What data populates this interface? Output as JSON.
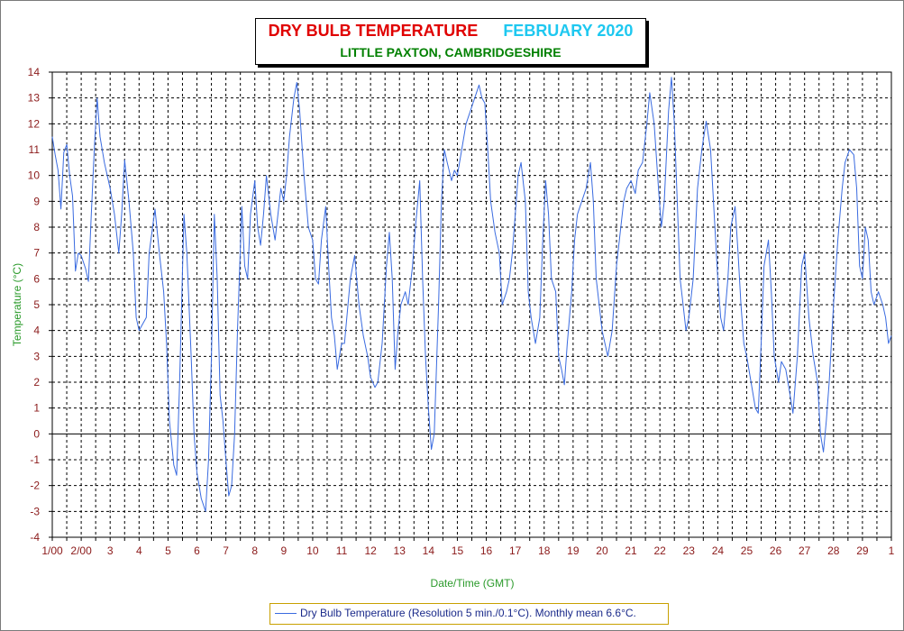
{
  "chart_data": {
    "type": "line",
    "title": "DRY BULB TEMPERATURE",
    "title_month": "FEBRUARY 2020",
    "subtitle": "LITTLE PAXTON, CAMBRIDGESHIRE",
    "xlabel": "Date/Time (GMT)",
    "ylabel": "Temperature (°C)",
    "ylim": [
      -4,
      14
    ],
    "xlim": [
      1,
      30
    ],
    "y_ticks": [
      "14",
      "13",
      "12",
      "11",
      "10",
      "9",
      "8",
      "7",
      "6",
      "5",
      "4",
      "3",
      "2",
      "1",
      "0",
      "-1",
      "-2",
      "-3",
      "-4"
    ],
    "x_ticks": [
      {
        "x": 1,
        "label": "1/00"
      },
      {
        "x": 2,
        "label": "2/00"
      },
      {
        "x": 3,
        "label": "3"
      },
      {
        "x": 4,
        "label": "4"
      },
      {
        "x": 5,
        "label": "5"
      },
      {
        "x": 6,
        "label": "6"
      },
      {
        "x": 7,
        "label": "7"
      },
      {
        "x": 8,
        "label": "8"
      },
      {
        "x": 9,
        "label": "9"
      },
      {
        "x": 10,
        "label": "10"
      },
      {
        "x": 11,
        "label": "11"
      },
      {
        "x": 12,
        "label": "12"
      },
      {
        "x": 13,
        "label": "13"
      },
      {
        "x": 14,
        "label": "14"
      },
      {
        "x": 15,
        "label": "15"
      },
      {
        "x": 16,
        "label": "16"
      },
      {
        "x": 17,
        "label": "17"
      },
      {
        "x": 18,
        "label": "18"
      },
      {
        "x": 19,
        "label": "19"
      },
      {
        "x": 20,
        "label": "20"
      },
      {
        "x": 21,
        "label": "21"
      },
      {
        "x": 22,
        "label": "22"
      },
      {
        "x": 23,
        "label": "23"
      },
      {
        "x": 24,
        "label": "24"
      },
      {
        "x": 25,
        "label": "25"
      },
      {
        "x": 26,
        "label": "26"
      },
      {
        "x": 27,
        "label": "27"
      },
      {
        "x": 28,
        "label": "28"
      },
      {
        "x": 29,
        "label": "29"
      },
      {
        "x": 30,
        "label": "1"
      }
    ],
    "grid": true,
    "legend": "bottom",
    "series": [
      {
        "name": "Dry Bulb Temperature (Resolution 5 min./0.1°C). Monthly mean 6.6°C.",
        "color": "#3a6be0",
        "points": [
          [
            1.0,
            11.5
          ],
          [
            1.1,
            10.8
          ],
          [
            1.2,
            10.2
          ],
          [
            1.3,
            8.7
          ],
          [
            1.4,
            10.9
          ],
          [
            1.5,
            11.2
          ],
          [
            1.6,
            10.0
          ],
          [
            1.7,
            9.2
          ],
          [
            1.8,
            6.3
          ],
          [
            1.9,
            7.0
          ],
          [
            2.0,
            6.9
          ],
          [
            2.15,
            6.4
          ],
          [
            2.25,
            5.9
          ],
          [
            2.35,
            8.5
          ],
          [
            2.45,
            11.0
          ],
          [
            2.55,
            13.0
          ],
          [
            2.65,
            11.5
          ],
          [
            2.8,
            10.5
          ],
          [
            3.0,
            9.5
          ],
          [
            3.15,
            8.5
          ],
          [
            3.3,
            7.0
          ],
          [
            3.4,
            8.5
          ],
          [
            3.5,
            10.6
          ],
          [
            3.65,
            9.0
          ],
          [
            3.8,
            7.0
          ],
          [
            3.9,
            4.5
          ],
          [
            4.0,
            4.0
          ],
          [
            4.1,
            4.2
          ],
          [
            4.25,
            4.5
          ],
          [
            4.35,
            7.0
          ],
          [
            4.55,
            8.7
          ],
          [
            4.7,
            7.0
          ],
          [
            4.85,
            5.5
          ],
          [
            4.95,
            3.5
          ],
          [
            5.05,
            0.5
          ],
          [
            5.2,
            -1.2
          ],
          [
            5.3,
            -1.6
          ],
          [
            5.4,
            2.0
          ],
          [
            5.55,
            8.5
          ],
          [
            5.65,
            7.0
          ],
          [
            5.8,
            3.0
          ],
          [
            5.9,
            0.0
          ],
          [
            6.0,
            -1.5
          ],
          [
            6.15,
            -2.5
          ],
          [
            6.3,
            -3.0
          ],
          [
            6.4,
            -1.0
          ],
          [
            6.5,
            3.0
          ],
          [
            6.6,
            8.5
          ],
          [
            6.7,
            6.0
          ],
          [
            6.8,
            1.5
          ],
          [
            6.9,
            0.5
          ],
          [
            7.0,
            -1.0
          ],
          [
            7.1,
            -2.4
          ],
          [
            7.2,
            -2.0
          ],
          [
            7.3,
            0.0
          ],
          [
            7.4,
            4.0
          ],
          [
            7.55,
            8.8
          ],
          [
            7.65,
            6.5
          ],
          [
            7.75,
            6.0
          ],
          [
            7.85,
            8.5
          ],
          [
            8.0,
            9.8
          ],
          [
            8.1,
            8.0
          ],
          [
            8.2,
            7.3
          ],
          [
            8.3,
            8.5
          ],
          [
            8.4,
            10.0
          ],
          [
            8.55,
            8.5
          ],
          [
            8.7,
            7.5
          ],
          [
            8.8,
            8.5
          ],
          [
            8.9,
            9.5
          ],
          [
            9.0,
            9.0
          ],
          [
            9.1,
            10.0
          ],
          [
            9.2,
            11.5
          ],
          [
            9.35,
            13.0
          ],
          [
            9.45,
            13.6
          ],
          [
            9.55,
            12.5
          ],
          [
            9.7,
            10.0
          ],
          [
            9.85,
            8.0
          ],
          [
            10.0,
            7.5
          ],
          [
            10.1,
            6.0
          ],
          [
            10.2,
            5.8
          ],
          [
            10.3,
            7.5
          ],
          [
            10.45,
            8.8
          ],
          [
            10.55,
            6.5
          ],
          [
            10.65,
            4.5
          ],
          [
            10.75,
            3.8
          ],
          [
            10.85,
            2.5
          ],
          [
            11.0,
            3.5
          ],
          [
            11.1,
            3.5
          ],
          [
            11.3,
            6.0
          ],
          [
            11.45,
            6.9
          ],
          [
            11.6,
            5.0
          ],
          [
            11.75,
            3.8
          ],
          [
            11.9,
            3.0
          ],
          [
            12.0,
            2.2
          ],
          [
            12.15,
            1.8
          ],
          [
            12.25,
            2.0
          ],
          [
            12.4,
            3.5
          ],
          [
            12.55,
            6.5
          ],
          [
            12.65,
            7.8
          ],
          [
            12.75,
            6.0
          ],
          [
            12.85,
            2.5
          ],
          [
            12.95,
            4.0
          ],
          [
            13.05,
            5.0
          ],
          [
            13.2,
            5.5
          ],
          [
            13.3,
            5.0
          ],
          [
            13.45,
            6.5
          ],
          [
            13.55,
            8.0
          ],
          [
            13.7,
            9.8
          ],
          [
            13.8,
            6.0
          ],
          [
            13.9,
            3.0
          ],
          [
            14.0,
            1.0
          ],
          [
            14.1,
            -0.6
          ],
          [
            14.2,
            0.0
          ],
          [
            14.35,
            5.0
          ],
          [
            14.45,
            9.0
          ],
          [
            14.55,
            11.0
          ],
          [
            14.65,
            10.5
          ],
          [
            14.8,
            9.8
          ],
          [
            14.9,
            10.2
          ],
          [
            15.0,
            10.0
          ],
          [
            15.15,
            11.0
          ],
          [
            15.3,
            12.0
          ],
          [
            15.45,
            12.5
          ],
          [
            15.6,
            13.0
          ],
          [
            15.75,
            13.5
          ],
          [
            15.85,
            13.0
          ],
          [
            15.95,
            12.8
          ],
          [
            16.05,
            11.0
          ],
          [
            16.15,
            9.0
          ],
          [
            16.3,
            7.8
          ],
          [
            16.45,
            7.0
          ],
          [
            16.55,
            5.0
          ],
          [
            16.7,
            5.5
          ],
          [
            16.8,
            6.0
          ],
          [
            16.9,
            7.0
          ],
          [
            17.0,
            8.5
          ],
          [
            17.1,
            10.0
          ],
          [
            17.2,
            10.5
          ],
          [
            17.35,
            9.0
          ],
          [
            17.45,
            5.5
          ],
          [
            17.55,
            4.5
          ],
          [
            17.7,
            3.5
          ],
          [
            17.85,
            4.5
          ],
          [
            17.95,
            7.5
          ],
          [
            18.05,
            9.8
          ],
          [
            18.15,
            8.5
          ],
          [
            18.25,
            6.0
          ],
          [
            18.4,
            5.5
          ],
          [
            18.5,
            3.0
          ],
          [
            18.6,
            2.5
          ],
          [
            18.7,
            1.9
          ],
          [
            18.8,
            3.5
          ],
          [
            18.95,
            5.5
          ],
          [
            19.05,
            7.5
          ],
          [
            19.15,
            8.5
          ],
          [
            19.3,
            9.0
          ],
          [
            19.45,
            9.5
          ],
          [
            19.6,
            10.5
          ],
          [
            19.7,
            9.0
          ],
          [
            19.8,
            6.0
          ],
          [
            19.9,
            5.0
          ],
          [
            20.0,
            4.0
          ],
          [
            20.1,
            3.5
          ],
          [
            20.2,
            3.0
          ],
          [
            20.35,
            4.0
          ],
          [
            20.5,
            6.5
          ],
          [
            20.6,
            7.5
          ],
          [
            20.75,
            9.0
          ],
          [
            20.85,
            9.5
          ],
          [
            21.0,
            9.8
          ],
          [
            21.15,
            9.3
          ],
          [
            21.25,
            10.2
          ],
          [
            21.4,
            10.5
          ],
          [
            21.55,
            12.0
          ],
          [
            21.65,
            13.2
          ],
          [
            21.8,
            12.0
          ],
          [
            21.95,
            9.5
          ],
          [
            22.05,
            8.0
          ],
          [
            22.15,
            9.0
          ],
          [
            22.3,
            12.5
          ],
          [
            22.4,
            13.8
          ],
          [
            22.5,
            12.0
          ],
          [
            22.6,
            9.0
          ],
          [
            22.7,
            6.0
          ],
          [
            22.8,
            5.0
          ],
          [
            22.9,
            4.0
          ],
          [
            23.0,
            4.5
          ],
          [
            23.15,
            6.0
          ],
          [
            23.3,
            9.5
          ],
          [
            23.45,
            11.0
          ],
          [
            23.6,
            12.1
          ],
          [
            23.75,
            11.0
          ],
          [
            23.85,
            9.0
          ],
          [
            24.0,
            6.0
          ],
          [
            24.1,
            4.5
          ],
          [
            24.2,
            4.0
          ],
          [
            24.35,
            6.0
          ],
          [
            24.45,
            8.0
          ],
          [
            24.6,
            8.8
          ],
          [
            24.7,
            7.0
          ],
          [
            24.8,
            5.0
          ],
          [
            24.9,
            3.5
          ],
          [
            25.0,
            3.0
          ],
          [
            25.15,
            2.0
          ],
          [
            25.3,
            1.0
          ],
          [
            25.4,
            0.8
          ],
          [
            25.5,
            3.5
          ],
          [
            25.6,
            6.5
          ],
          [
            25.75,
            7.5
          ],
          [
            25.85,
            5.5
          ],
          [
            25.95,
            3.0
          ],
          [
            26.1,
            2.0
          ],
          [
            26.2,
            2.8
          ],
          [
            26.35,
            2.5
          ],
          [
            26.5,
            1.5
          ],
          [
            26.6,
            0.8
          ],
          [
            26.75,
            3.0
          ],
          [
            26.9,
            6.5
          ],
          [
            27.0,
            7.0
          ],
          [
            27.15,
            4.5
          ],
          [
            27.3,
            3.0
          ],
          [
            27.45,
            2.0
          ],
          [
            27.55,
            0.0
          ],
          [
            27.65,
            -0.7
          ],
          [
            27.75,
            0.5
          ],
          [
            27.85,
            2.0
          ],
          [
            28.0,
            5.0
          ],
          [
            28.15,
            7.5
          ],
          [
            28.3,
            9.5
          ],
          [
            28.4,
            10.5
          ],
          [
            28.55,
            11.0
          ],
          [
            28.7,
            10.8
          ],
          [
            28.8,
            9.5
          ],
          [
            28.9,
            6.5
          ],
          [
            29.0,
            6.0
          ],
          [
            29.1,
            8.0
          ],
          [
            29.2,
            7.5
          ],
          [
            29.3,
            5.5
          ],
          [
            29.4,
            5.0
          ],
          [
            29.55,
            5.5
          ],
          [
            29.7,
            5.0
          ],
          [
            29.8,
            4.5
          ],
          [
            29.9,
            3.5
          ],
          [
            30.0,
            3.8
          ]
        ]
      }
    ]
  }
}
